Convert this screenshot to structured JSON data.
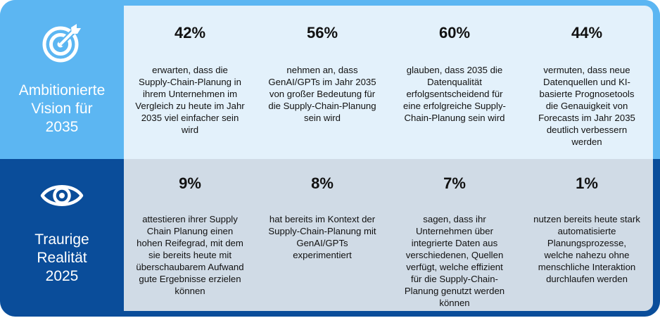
{
  "colors": {
    "top_side": "#5cb6f2",
    "top_panel": "#e3f1fb",
    "bottom_side": "#0a4d9a",
    "bottom_panel": "#d0dbe6"
  },
  "rows": [
    {
      "icon": "target-icon",
      "label": "Ambitionierte\nVision für\n2035",
      "cells": [
        {
          "percent": "42%",
          "text": "erwarten, dass die Supply-Chain-Planung in ihrem Unternehmen im Vergleich zu heute im Jahr 2035 viel einfacher sein wird"
        },
        {
          "percent": "56%",
          "text": "nehmen an, dass GenAI/GPTs im Jahr 2035 von großer Bedeutung für die Supply-Chain-Planung sein wird"
        },
        {
          "percent": "60%",
          "text": "glauben, dass 2035 die Datenqualität erfolgsentscheidend für eine erfolgreiche Supply-Chain-Planung sein wird"
        },
        {
          "percent": "44%",
          "text": "vermuten, dass neue Datenquellen und KI-basierte Prognosetools die Genauigkeit von Forecasts im Jahr 2035 deutlich verbessern werden"
        }
      ]
    },
    {
      "icon": "eye-icon",
      "label": "Traurige\nRealität\n2025",
      "cells": [
        {
          "percent": "9%",
          "text": "attestieren ihrer Supply Chain Planung einen hohen Reifegrad, mit dem sie bereits heute mit überschaubarem Aufwand gute Ergebnisse erzielen können"
        },
        {
          "percent": "8%",
          "text": "hat bereits im Kontext der Supply-Chain-Planung mit GenAI/GPTs experimentiert"
        },
        {
          "percent": "7%",
          "text": "sagen, dass ihr Unternehmen über integrierte Daten aus verschiedenen, Quellen verfügt, welche effizient für die Supply-Chain-Planung genutzt werden können"
        },
        {
          "percent": "1%",
          "text": "nutzen bereits heute stark automatisierte Planungsprozesse, welche nahezu ohne menschliche Interaktion durchlaufen werden"
        }
      ]
    }
  ]
}
